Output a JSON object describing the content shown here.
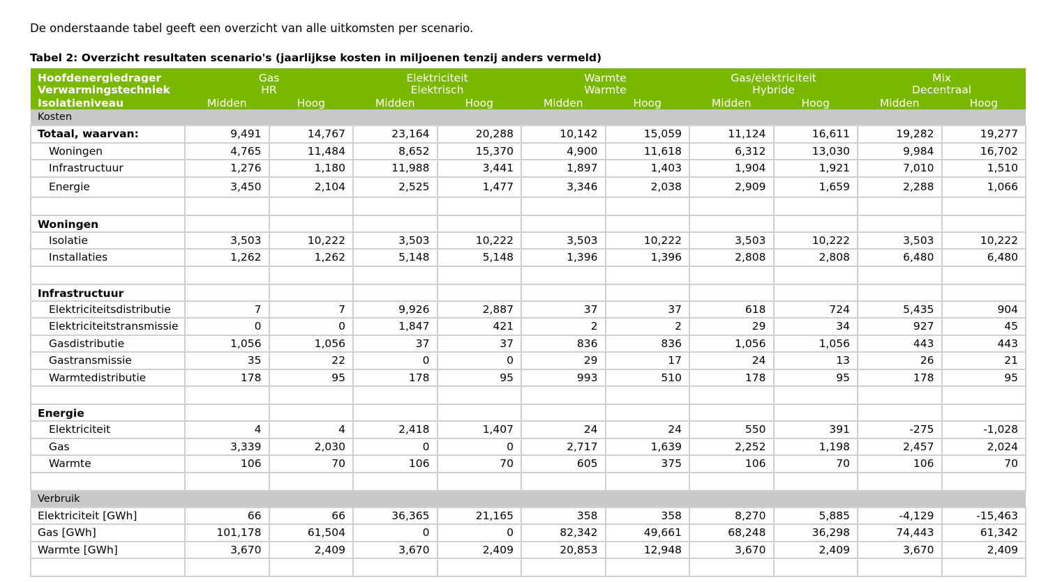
{
  "intro": "De onderstaande tabel geeft een overzicht van alle uitkomsten per scenario.",
  "caption": "Tabel 2: Overzicht resultaten scenario's (jaarlijkse kosten in miljoenen tenzij anders vermeld)",
  "header": {
    "row1_label": "Hoofdenergiedrager",
    "row2_label": "Verwarmingstechniek",
    "row3_label": "Isolatieniveau",
    "groups": [
      {
        "carrier": "Gas",
        "technique": "HR"
      },
      {
        "carrier": "Elektriciteit",
        "technique": "Elektrisch"
      },
      {
        "carrier": "Warmte",
        "technique": "Warmte"
      },
      {
        "carrier": "Gas/elektriciteit",
        "technique": "Hybride"
      },
      {
        "carrier": "Mix",
        "technique": "Decentraal"
      }
    ],
    "low": "Midden",
    "high": "Hoog"
  },
  "sections": {
    "kosten": "Kosten",
    "verbruik": "Verbruik"
  },
  "rows": [
    {
      "label": "Totaal, waarvan:",
      "values": [
        "9,491",
        "14,767",
        "23,164",
        "20,288",
        "10,142",
        "15,059",
        "11,124",
        "16,611",
        "19,282",
        "19,277"
      ]
    },
    {
      "label": "Woningen",
      "values": [
        "4,765",
        "11,484",
        "8,652",
        "15,370",
        "4,900",
        "11,618",
        "6,312",
        "13,030",
        "9,984",
        "16,702"
      ]
    },
    {
      "label": "Infrastructuur",
      "values": [
        "1,276",
        "1,180",
        "11,988",
        "3,441",
        "1,897",
        "1,403",
        "1,904",
        "1,921",
        "7,010",
        "1,510"
      ]
    },
    {
      "label": "Energie",
      "values": [
        "3,450",
        "2,104",
        "2,525",
        "1,477",
        "3,346",
        "2,038",
        "2,909",
        "1,659",
        "2,288",
        "1,066"
      ]
    },
    {
      "label": "Woningen",
      "values": []
    },
    {
      "label": "Isolatie",
      "values": [
        "3,503",
        "10,222",
        "3,503",
        "10,222",
        "3,503",
        "10,222",
        "3,503",
        "10,222",
        "3,503",
        "10,222"
      ]
    },
    {
      "label": "Installaties",
      "values": [
        "1,262",
        "1,262",
        "5,148",
        "5,148",
        "1,396",
        "1,396",
        "2,808",
        "2,808",
        "6,480",
        "6,480"
      ]
    },
    {
      "label": "Infrastructuur",
      "values": []
    },
    {
      "label": "Elektriciteitsdistributie",
      "values": [
        "7",
        "7",
        "9,926",
        "2,887",
        "37",
        "37",
        "618",
        "724",
        "5,435",
        "904"
      ]
    },
    {
      "label": "Elektriciteitstransmissie",
      "values": [
        "0",
        "0",
        "1,847",
        "421",
        "2",
        "2",
        "29",
        "34",
        "927",
        "45"
      ]
    },
    {
      "label": "Gasdistributie",
      "values": [
        "1,056",
        "1,056",
        "37",
        "37",
        "836",
        "836",
        "1,056",
        "1,056",
        "443",
        "443"
      ]
    },
    {
      "label": "Gastransmissie",
      "values": [
        "35",
        "22",
        "0",
        "0",
        "29",
        "17",
        "24",
        "13",
        "26",
        "21"
      ]
    },
    {
      "label": "Warmtedistributie",
      "values": [
        "178",
        "95",
        "178",
        "95",
        "993",
        "510",
        "178",
        "95",
        "178",
        "95"
      ]
    },
    {
      "label": "Energie",
      "values": []
    },
    {
      "label": "Elektriciteit",
      "values": [
        "4",
        "4",
        "2,418",
        "1,407",
        "24",
        "24",
        "550",
        "391",
        "-275",
        "-1,028"
      ]
    },
    {
      "label": "Gas",
      "values": [
        "3,339",
        "2,030",
        "0",
        "0",
        "2,717",
        "1,639",
        "2,252",
        "1,198",
        "2,457",
        "2,024"
      ]
    },
    {
      "label": "Warmte",
      "values": [
        "106",
        "70",
        "106",
        "70",
        "605",
        "375",
        "106",
        "70",
        "106",
        "70"
      ]
    },
    {
      "label": "Elektriciteit [GWh]",
      "values": [
        "66",
        "66",
        "36,365",
        "21,165",
        "358",
        "358",
        "8,270",
        "5,885",
        "-4,129",
        "-15,463"
      ]
    },
    {
      "label": "Gas [GWh]",
      "values": [
        "101,178",
        "61,504",
        "0",
        "0",
        "82,342",
        "49,661",
        "68,248",
        "36,298",
        "74,443",
        "61,342"
      ]
    },
    {
      "label": "Warmte [GWh]",
      "values": [
        "3,670",
        "2,409",
        "3,670",
        "2,409",
        "20,853",
        "12,948",
        "3,670",
        "2,409",
        "3,670",
        "2,409"
      ]
    }
  ]
}
